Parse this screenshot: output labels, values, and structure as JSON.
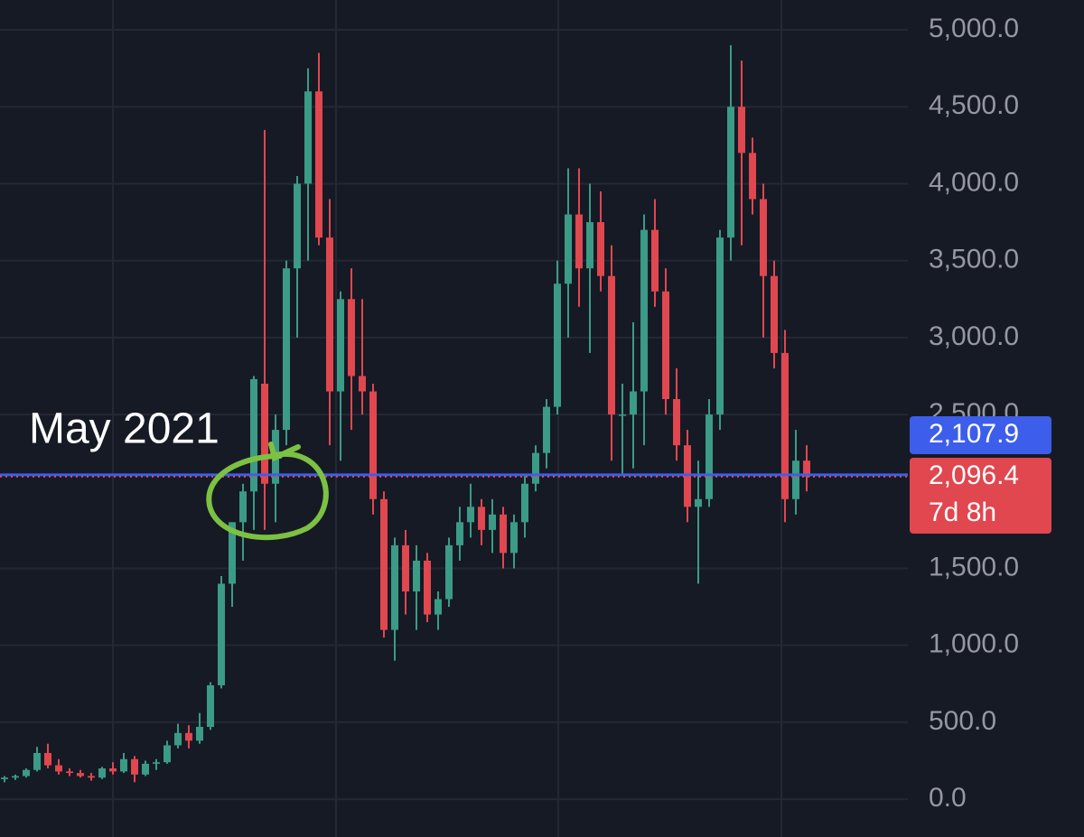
{
  "chart_data": {
    "type": "candlestick",
    "up_color": "#3b9b86",
    "down_color": "#e0474f",
    "open": [
      130,
      140,
      150,
      190,
      300,
      220,
      180,
      170,
      150,
      140,
      200,
      180,
      260,
      160,
      230,
      240,
      350,
      430,
      380,
      470,
      740,
      1400,
      1800,
      2000,
      2700,
      2050,
      2400,
      3450,
      4000,
      4600,
      3650,
      2650,
      3250,
      2750,
      2650,
      1950,
      1100,
      1650,
      1350,
      1550,
      1200,
      1300,
      1650,
      1800,
      1900,
      1750,
      1850,
      1600,
      1800,
      2050,
      2250,
      2550,
      3350,
      3800,
      3450,
      3750,
      3400,
      2500,
      2500,
      2650,
      3700,
      3300,
      2600,
      2300,
      1900,
      1950,
      2500,
      3650,
      4500,
      4200,
      3900,
      3400,
      2900,
      1950,
      2200
    ],
    "high": [
      150,
      160,
      200,
      340,
      360,
      260,
      200,
      190,
      170,
      210,
      240,
      300,
      280,
      250,
      260,
      380,
      490,
      480,
      560,
      760,
      1450,
      1800,
      2050,
      2750,
      4350,
      2500,
      3500,
      4050,
      4750,
      4850,
      3900,
      3300,
      3450,
      3250,
      2700,
      2000,
      1700,
      1750,
      1650,
      1600,
      1350,
      1700,
      1900,
      2050,
      1950,
      1950,
      1900,
      1850,
      2100,
      2300,
      2600,
      3500,
      4100,
      4100,
      4000,
      3950,
      3600,
      2700,
      3100,
      3800,
      3900,
      3450,
      2800,
      2400,
      2200,
      2600,
      3700,
      4900,
      4800,
      4300,
      4000,
      3500,
      3050,
      2400,
      2300
    ],
    "low": [
      110,
      125,
      140,
      180,
      200,
      160,
      150,
      140,
      120,
      130,
      160,
      170,
      110,
      150,
      190,
      230,
      330,
      330,
      360,
      450,
      720,
      1250,
      1550,
      1750,
      1750,
      1800,
      2300,
      3000,
      3500,
      3600,
      2300,
      2200,
      2400,
      2500,
      1850,
      1050,
      900,
      1200,
      1100,
      1150,
      1100,
      1250,
      1550,
      1700,
      1650,
      1600,
      1500,
      1500,
      1700,
      2000,
      2150,
      2500,
      3000,
      3200,
      2900,
      3300,
      2200,
      2100,
      2150,
      2300,
      3200,
      2500,
      2200,
      1800,
      1400,
      1900,
      2400,
      3500,
      3600,
      3800,
      3000,
      2800,
      1800,
      1850,
      2000
    ],
    "close": [
      140,
      150,
      190,
      300,
      220,
      180,
      170,
      150,
      140,
      200,
      180,
      260,
      160,
      230,
      240,
      350,
      430,
      380,
      470,
      740,
      1400,
      1800,
      2000,
      2730,
      2050,
      2400,
      3450,
      4000,
      4600,
      3650,
      2650,
      3250,
      2750,
      2650,
      1950,
      1100,
      1650,
      1350,
      1550,
      1200,
      1300,
      1650,
      1800,
      1900,
      1750,
      1850,
      1600,
      1800,
      2050,
      2250,
      2550,
      3350,
      3800,
      3450,
      3750,
      3400,
      2500,
      2500,
      2650,
      3700,
      3300,
      2600,
      2300,
      1900,
      1950,
      2500,
      3650,
      4500,
      4200,
      3900,
      3400,
      2900,
      1950,
      2200,
      2096.4
    ],
    "ylim": [
      -246,
      5194
    ],
    "yticks": [
      {
        "value": 0,
        "label": "0.0"
      },
      {
        "value": 500,
        "label": "500.0"
      },
      {
        "value": 1000,
        "label": "1,000.0"
      },
      {
        "value": 1500,
        "label": "1,500.0"
      },
      {
        "value": 2500,
        "label": "2,500.0"
      },
      {
        "value": 3000,
        "label": "3,000.0"
      },
      {
        "value": 3500,
        "label": "3,500.0"
      },
      {
        "value": 4000,
        "label": "4,000.0"
      },
      {
        "value": 4500,
        "label": "4,500.0"
      },
      {
        "value": 5000,
        "label": "5,000.0"
      }
    ],
    "grid": true,
    "price_lines": [
      {
        "value": 2107.9,
        "label": "2,107.9",
        "color": "#3d5eea"
      },
      {
        "value": 2096.4,
        "label": "2,096.4",
        "color": "#e0474f",
        "countdown": "7d 8h"
      }
    ],
    "annotation": "May 2021"
  }
}
